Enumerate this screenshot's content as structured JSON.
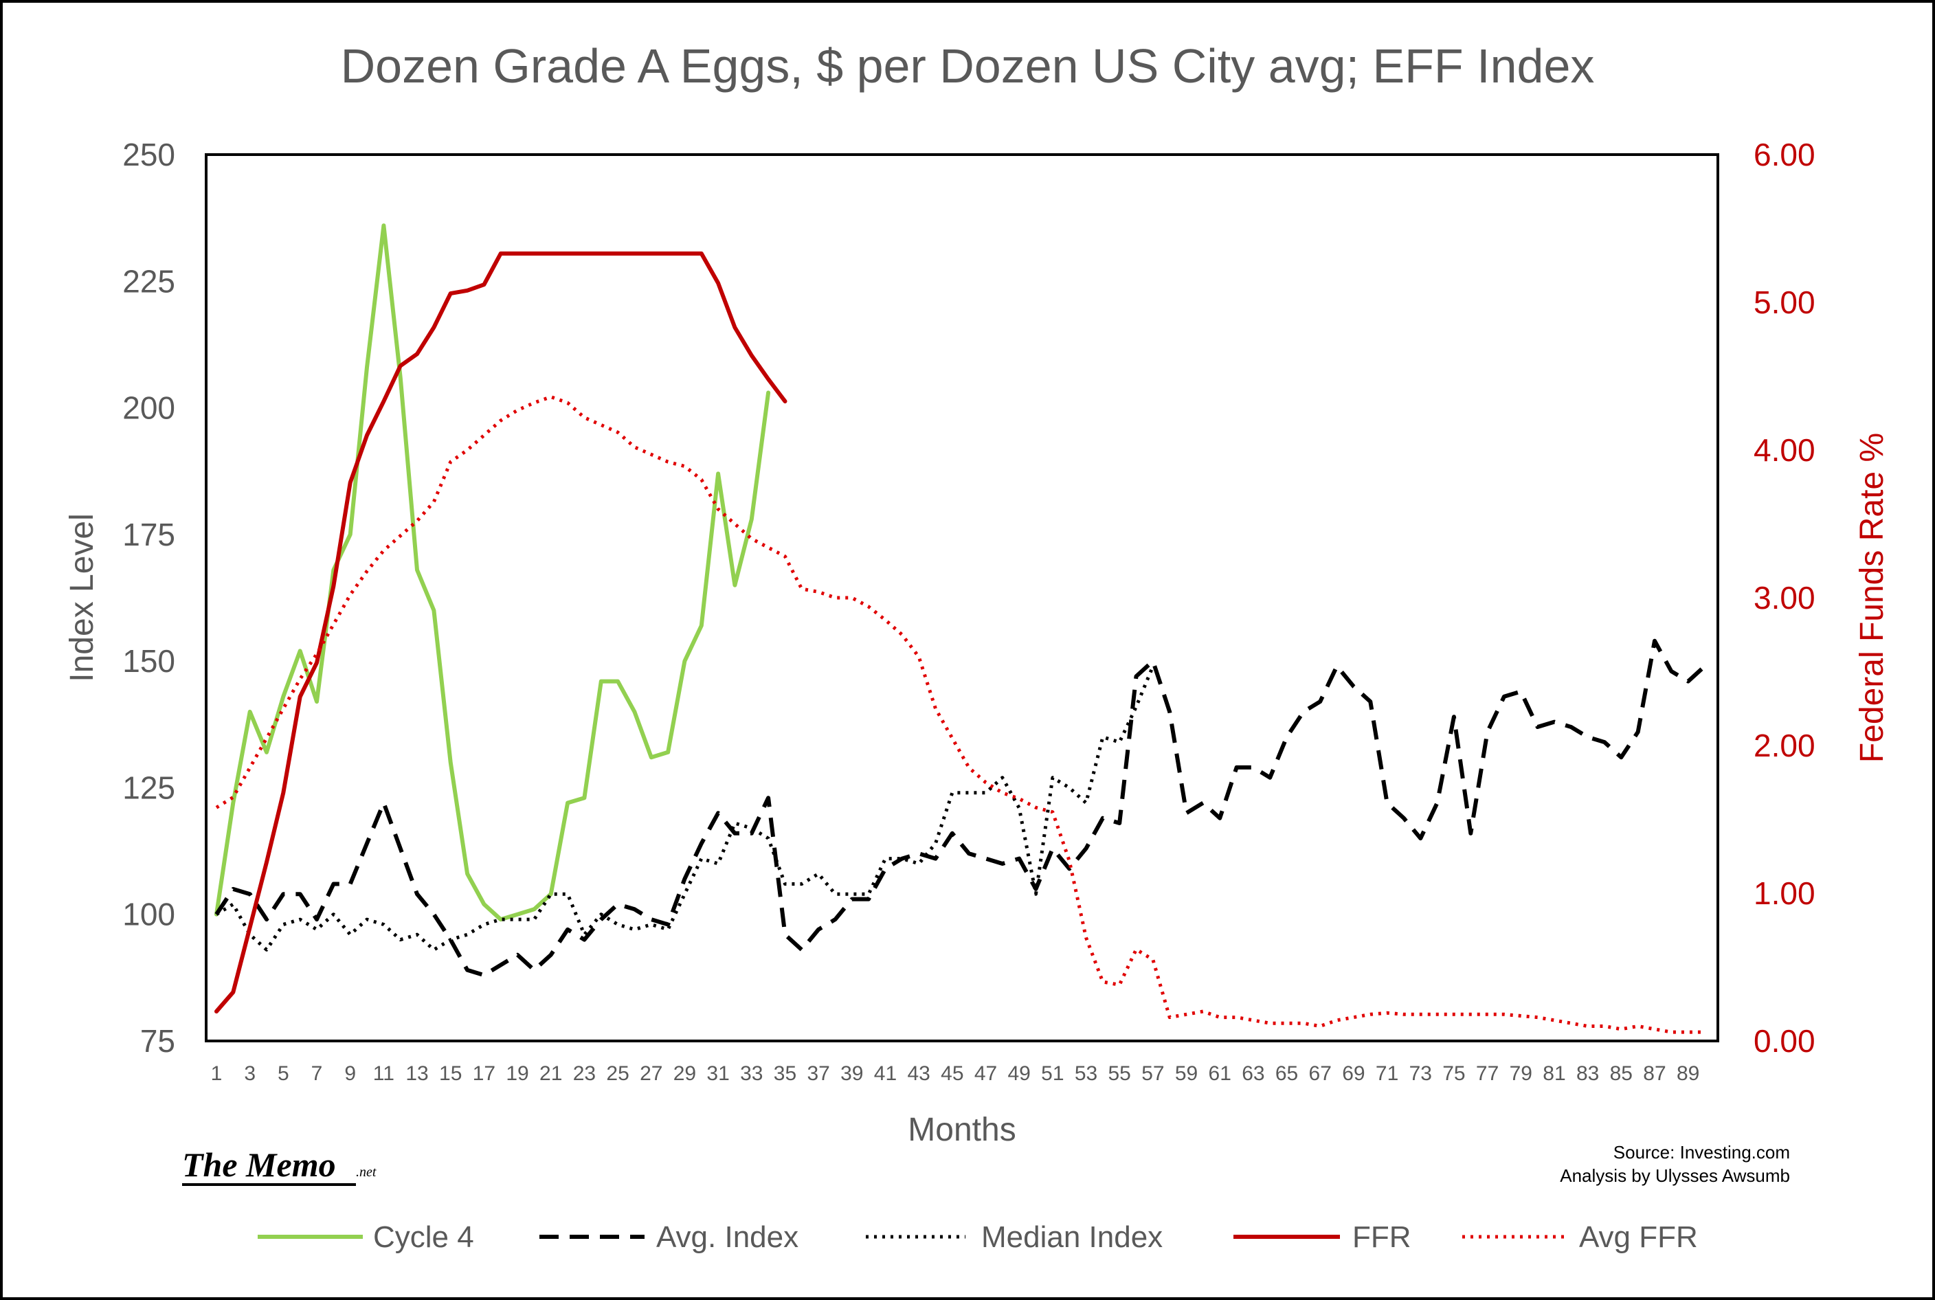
{
  "chart_data": {
    "type": "line",
    "title": "Dozen Grade A Eggs, $ per Dozen US City avg; EFF Index",
    "xlabel": "Months",
    "ylabel": "Index Level",
    "y2label": "Federal Funds Rate %",
    "xlim": [
      1,
      90
    ],
    "ylim": [
      75,
      250
    ],
    "y2lim": [
      0,
      6
    ],
    "y_ticks": [
      "250",
      "225",
      "200",
      "175",
      "150",
      "125",
      "100",
      "75"
    ],
    "y2_ticks": [
      "6.00",
      "5.00",
      "4.00",
      "3.00",
      "2.00",
      "1.00",
      "0.00"
    ],
    "x_ticks": [
      "1",
      "3",
      "5",
      "7",
      "9",
      "11",
      "13",
      "15",
      "17",
      "19",
      "21",
      "23",
      "25",
      "27",
      "29",
      "31",
      "33",
      "35",
      "37",
      "39",
      "41",
      "43",
      "45",
      "47",
      "49",
      "51",
      "53",
      "55",
      "57",
      "59",
      "61",
      "63",
      "65",
      "67",
      "69",
      "71",
      "73",
      "75",
      "77",
      "79",
      "81",
      "83",
      "85",
      "87",
      "89"
    ],
    "legend_position": "bottom",
    "grid": false,
    "series": [
      {
        "name": "Cycle 4",
        "axis": "left",
        "color": "#92d050",
        "style": "solid",
        "x": [
          1,
          2,
          3,
          4,
          5,
          6,
          7,
          8,
          9,
          10,
          11,
          12,
          13,
          14,
          15,
          16,
          17,
          18,
          19,
          20,
          21,
          22,
          23,
          24,
          25,
          26,
          27,
          28,
          29,
          30,
          31,
          32,
          33,
          34
        ],
        "values": [
          100,
          122,
          140,
          132,
          143,
          152,
          142,
          168,
          175,
          208,
          236,
          206,
          168,
          160,
          130,
          108,
          102,
          99,
          100,
          101,
          104,
          122,
          123,
          146,
          146,
          140,
          131,
          132,
          150,
          157,
          187,
          165,
          178,
          203
        ]
      },
      {
        "name": "Avg. Index",
        "axis": "left",
        "color": "#000000",
        "style": "dashed",
        "x": [
          1,
          2,
          3,
          4,
          5,
          6,
          7,
          8,
          9,
          10,
          11,
          12,
          13,
          14,
          15,
          16,
          17,
          18,
          19,
          20,
          21,
          22,
          23,
          24,
          25,
          26,
          27,
          28,
          29,
          30,
          31,
          32,
          33,
          34,
          35,
          36,
          37,
          38,
          39,
          40,
          41,
          42,
          43,
          44,
          45,
          46,
          47,
          48,
          49,
          50,
          51,
          52,
          53,
          54,
          55,
          56,
          57,
          58,
          59,
          60,
          61,
          62,
          63,
          64,
          65,
          66,
          67,
          68,
          69,
          70,
          71,
          72,
          73,
          74,
          75,
          76,
          77,
          78,
          79,
          80,
          81,
          82,
          83,
          84,
          85,
          86,
          87,
          88,
          89,
          90
        ],
        "values": [
          100,
          105,
          104,
          99,
          104,
          104,
          99,
          106,
          106,
          114,
          122,
          113,
          104,
          100,
          95,
          89,
          88,
          90,
          92,
          89,
          92,
          97,
          95,
          99,
          102,
          101,
          99,
          98,
          107,
          114,
          120,
          116,
          116,
          123,
          96,
          93,
          97,
          99,
          103,
          103,
          109,
          111,
          112,
          111,
          116,
          112,
          111,
          110,
          111,
          105,
          113,
          109,
          113,
          119,
          118,
          147,
          150,
          140,
          120,
          122,
          119,
          129,
          129,
          127,
          135,
          140,
          142,
          149,
          145,
          142,
          122,
          119,
          115,
          122,
          139,
          116,
          136,
          143,
          144,
          137,
          138,
          137,
          135,
          134,
          131,
          136,
          154,
          148,
          146,
          149
        ]
      },
      {
        "name": "Median Index",
        "axis": "left",
        "color": "#000000",
        "style": "dotted",
        "x": [
          1,
          2,
          3,
          4,
          5,
          6,
          7,
          8,
          9,
          10,
          11,
          12,
          13,
          14,
          15,
          16,
          17,
          18,
          19,
          20,
          21,
          22,
          23,
          24,
          25,
          26,
          27,
          28,
          29,
          30,
          31,
          32,
          33,
          34,
          35,
          36,
          37,
          38,
          39,
          40,
          41,
          42,
          43,
          44,
          45,
          46,
          47,
          48,
          49,
          50,
          51,
          52,
          53,
          54,
          55,
          56,
          57
        ],
        "values": [
          100,
          102,
          96,
          93,
          98,
          99,
          97,
          100,
          96,
          99,
          98,
          95,
          96,
          93,
          95,
          96,
          98,
          99,
          99,
          99,
          104,
          104,
          96,
          100,
          98,
          97,
          98,
          97,
          104,
          111,
          110,
          118,
          117,
          115,
          106,
          106,
          108,
          104,
          104,
          104,
          111,
          111,
          110,
          114,
          124,
          124,
          124,
          127,
          121,
          104,
          127,
          125,
          122,
          135,
          134,
          141,
          149
        ]
      },
      {
        "name": "FFR",
        "axis": "right",
        "color": "#c00000",
        "style": "solid",
        "x": [
          1,
          2,
          3,
          4,
          5,
          6,
          7,
          8,
          9,
          10,
          11,
          12,
          13,
          14,
          15,
          16,
          17,
          18,
          19,
          20,
          21,
          22,
          23,
          24,
          25,
          26,
          27,
          28,
          29,
          30,
          31,
          32,
          33,
          34,
          35
        ],
        "values": [
          0.2,
          0.33,
          0.77,
          1.21,
          1.68,
          2.33,
          2.56,
          3.08,
          3.78,
          4.1,
          4.33,
          4.57,
          4.65,
          4.83,
          5.06,
          5.08,
          5.12,
          5.33,
          5.33,
          5.33,
          5.33,
          5.33,
          5.33,
          5.33,
          5.33,
          5.33,
          5.33,
          5.33,
          5.33,
          5.33,
          5.13,
          4.83,
          4.64,
          4.48,
          4.33
        ]
      },
      {
        "name": "Avg FFR",
        "axis": "right",
        "color": "#e00000",
        "style": "dotted",
        "x": [
          1,
          2,
          3,
          4,
          5,
          6,
          7,
          8,
          9,
          10,
          11,
          12,
          13,
          14,
          15,
          16,
          17,
          18,
          19,
          20,
          21,
          22,
          23,
          24,
          25,
          26,
          27,
          28,
          29,
          30,
          31,
          32,
          33,
          34,
          35,
          36,
          37,
          38,
          39,
          40,
          41,
          42,
          43,
          44,
          45,
          46,
          47,
          48,
          49,
          50,
          51,
          52,
          53,
          54,
          55,
          56,
          57,
          58,
          59,
          60,
          61,
          62,
          63,
          64,
          65,
          66,
          67,
          68,
          69,
          70,
          71,
          72,
          73,
          74,
          75,
          76,
          77,
          78,
          79,
          80,
          81,
          82,
          83,
          84,
          85,
          86,
          87,
          88,
          89,
          90
        ],
        "values": [
          1.58,
          1.65,
          1.85,
          2.05,
          2.25,
          2.45,
          2.62,
          2.82,
          3.02,
          3.18,
          3.32,
          3.42,
          3.52,
          3.65,
          3.92,
          4.0,
          4.1,
          4.2,
          4.27,
          4.32,
          4.36,
          4.32,
          4.22,
          4.17,
          4.12,
          4.02,
          3.97,
          3.92,
          3.89,
          3.8,
          3.6,
          3.5,
          3.4,
          3.34,
          3.28,
          3.06,
          3.04,
          3.0,
          3.0,
          2.94,
          2.85,
          2.75,
          2.6,
          2.25,
          2.05,
          1.85,
          1.75,
          1.68,
          1.64,
          1.58,
          1.55,
          1.22,
          0.7,
          0.4,
          0.38,
          0.62,
          0.55,
          0.16,
          0.18,
          0.2,
          0.16,
          0.16,
          0.14,
          0.12,
          0.12,
          0.12,
          0.1,
          0.14,
          0.16,
          0.18,
          0.19,
          0.18,
          0.18,
          0.18,
          0.18,
          0.18,
          0.18,
          0.18,
          0.17,
          0.16,
          0.14,
          0.12,
          0.1,
          0.1,
          0.08,
          0.1,
          0.08,
          0.06,
          0.06,
          0.06
        ]
      }
    ]
  },
  "branding": {
    "name": "The Memo",
    "suffix": ".net"
  },
  "source": {
    "line1": "Source: Investing.com",
    "line2": "Analysis by Ulysses Awsumb"
  }
}
